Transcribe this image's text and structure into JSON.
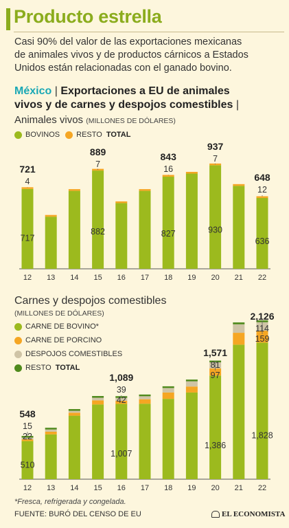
{
  "title": "Producto estrella",
  "intro": [
    "Casi 90% del valor de las exportaciones mexicanas",
    "de animales vivos y de productos cárnicos a Estados",
    "Unidos están relacionadas con el ganado bovino."
  ],
  "heading": {
    "country": "México",
    "separator": "|",
    "line1_rest": "Exportaciones a EU de animales",
    "line2": "vivos y de carnes y despojos comestibles"
  },
  "total_label": "TOTAL",
  "footnote": "*Fresca, refrigerada y congelada.",
  "source": "FUENTE: BURÓ DEL CENSO DE EU",
  "brand": "EL ECONOMISTA",
  "colors": {
    "bovino": "#9cba1e",
    "porcino": "#f5a623",
    "despojos": "#cfc4a6",
    "resto_carnes": "#4f8a1c",
    "resto_vivos": "#f5a623",
    "total_marker": "#666666",
    "axis": "#555555"
  },
  "chart_data": [
    {
      "type": "bar",
      "stacked": true,
      "title": "Animales vivos",
      "units": "(MILLONES DE DÓLARES)",
      "categories": [
        "12",
        "13",
        "14",
        "15",
        "16",
        "17",
        "18",
        "19",
        "20",
        "21",
        "22"
      ],
      "series": [
        {
          "name": "BOVINOS",
          "color": "#9cba1e",
          "values": [
            717,
            468,
            700,
            882,
            590,
            700,
            827,
            855,
            930,
            745,
            636
          ],
          "labels": {
            "12": "717",
            "15": "882",
            "18": "827",
            "20": "930",
            "22": "636"
          }
        },
        {
          "name": "RESTO",
          "color": "#f5a623",
          "values": [
            4,
            6,
            5,
            7,
            6,
            6,
            16,
            8,
            7,
            7,
            12
          ],
          "labels": {
            "12": "4",
            "15": "7",
            "18": "16",
            "20": "7",
            "22": "12"
          }
        }
      ],
      "totals": {
        "12": "721",
        "15": "889",
        "18": "843",
        "20": "937",
        "22": "648"
      },
      "ylim": [
        0,
        1000
      ]
    },
    {
      "type": "bar",
      "stacked": true,
      "title": "Carnes y despojos comestibles",
      "units": "(MILLONES DE DÓLARES)",
      "categories": [
        "12",
        "13",
        "14",
        "15",
        "16",
        "17",
        "18",
        "19",
        "20",
        "21",
        "22"
      ],
      "series": [
        {
          "name": "CARNE DE BOVINO*",
          "color": "#9cba1e",
          "values": [
            510,
            600,
            850,
            1000,
            1007,
            1010,
            1075,
            1160,
            1386,
            1800,
            1828
          ],
          "labels": {
            "12": "510",
            "16": "1,007",
            "20": "1,386",
            "22": "1,828"
          }
        },
        {
          "name": "CARNE DE PORCINO",
          "color": "#f5a623",
          "values": [
            22,
            35,
            40,
            55,
            42,
            60,
            85,
            80,
            97,
            159,
            159
          ],
          "labels": {
            "12": "22",
            "16": "42",
            "20": "97",
            "22": "159"
          }
        },
        {
          "name": "DESPOJOS COMESTIBLES",
          "color": "#cfc4a6",
          "values": [
            15,
            30,
            25,
            35,
            39,
            40,
            60,
            70,
            81,
            114,
            114
          ],
          "labels": {
            "12": "15",
            "16": "39",
            "20": "81",
            "22": "114"
          }
        },
        {
          "name": "RESTO",
          "color": "#4f8a1c",
          "values": [
            1,
            5,
            5,
            8,
            1,
            5,
            10,
            8,
            7,
            25,
            25
          ]
        }
      ],
      "totals": {
        "12": "548",
        "16": "1,089",
        "20": "1,571",
        "22": "2,126"
      },
      "ylim": [
        0,
        2300
      ]
    }
  ]
}
